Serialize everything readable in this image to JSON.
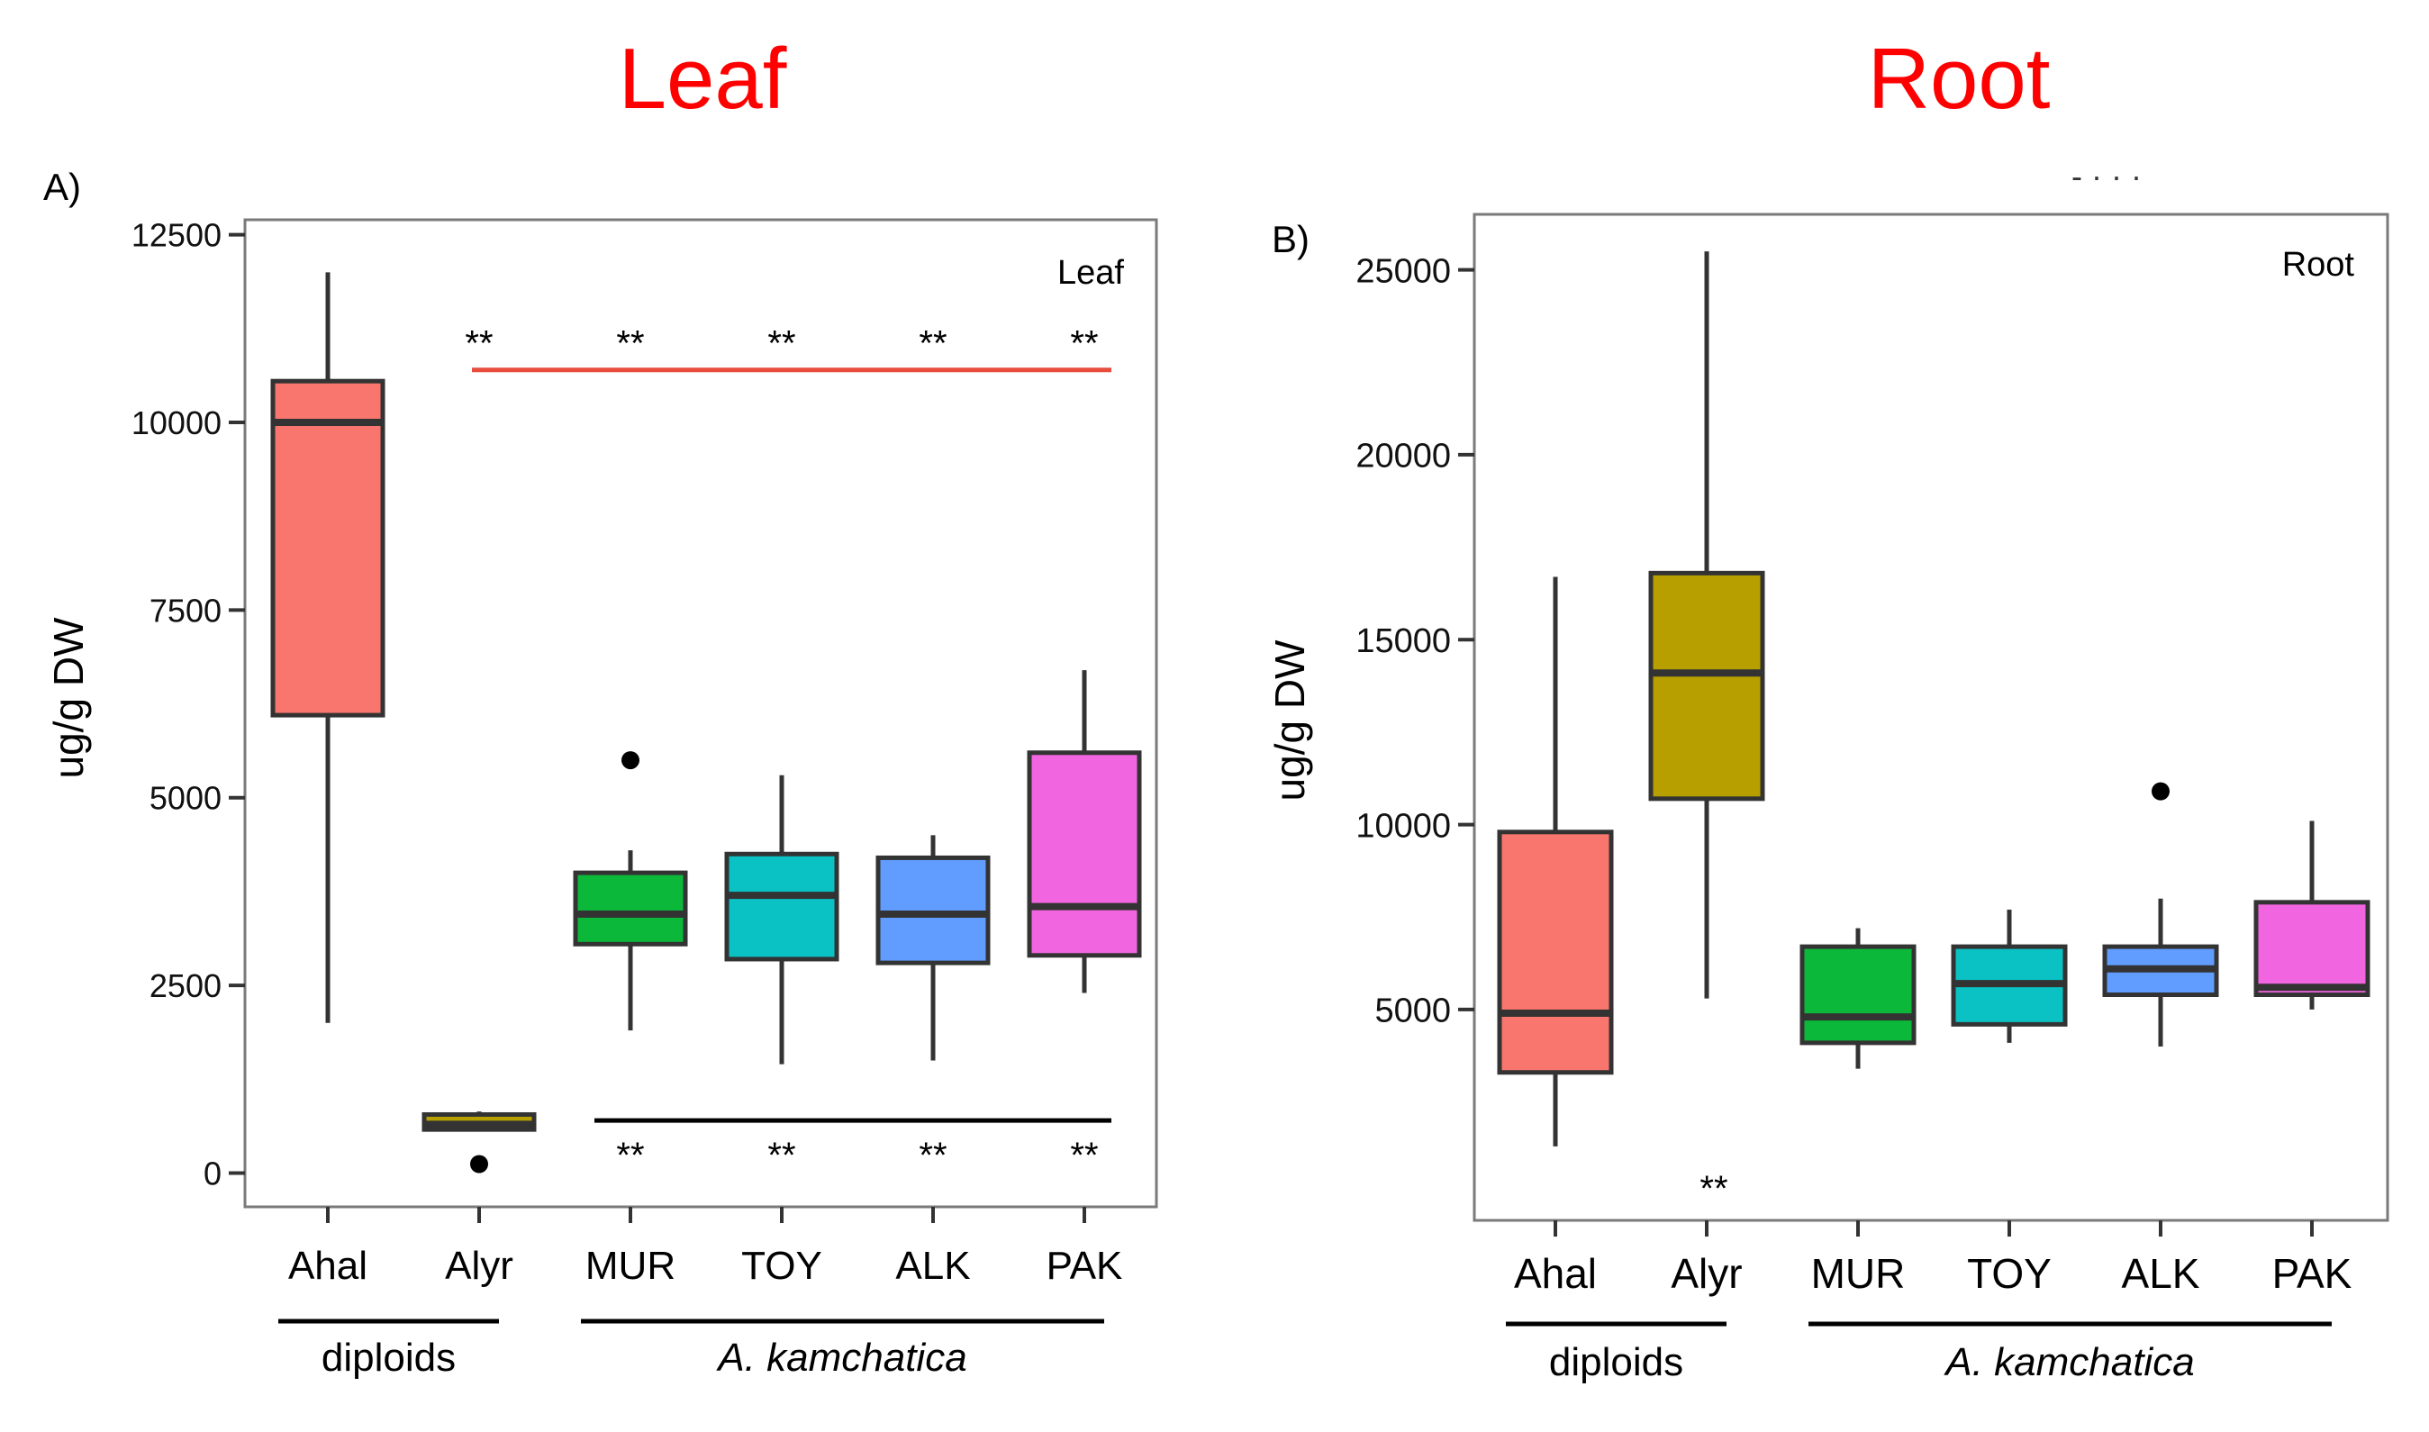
{
  "colors": {
    "Ahal": "#f8766d",
    "Alyr": "#b79f00",
    "MUR": "#0cb83a",
    "TOY": "#0ac1c4",
    "ALK": "#619cff",
    "PAK": "#f265e0",
    "heading": "#ff0000",
    "leaf_bar": "#e74c3c",
    "axis": "#333333"
  },
  "panel_titles": [
    "Leaf",
    "Root"
  ],
  "stray_text": "- · · ·",
  "chart_data": [
    {
      "type": "boxplot",
      "panel_label": "A)",
      "inset_label": "Leaf",
      "ylabel": "ug/g DW",
      "ylim": [
        -450,
        12700
      ],
      "y_ticks": [
        0,
        2500,
        5000,
        7500,
        10000,
        12500
      ],
      "y_tick_labels": [
        "0",
        "2500",
        "5000",
        "7500",
        "10000",
        "12500"
      ],
      "categories": [
        "Ahal",
        "Alyr",
        "MUR",
        "TOY",
        "ALK",
        "PAK"
      ],
      "boxes": [
        {
          "name": "Ahal",
          "whisker_low": 2000,
          "q1": 6100,
          "median": 10000,
          "q3": 10550,
          "whisker_high": 12000,
          "outliers": []
        },
        {
          "name": "Alyr",
          "whisker_low": 580,
          "q1": 580,
          "median": 650,
          "q3": 780,
          "whisker_high": 820,
          "outliers": [
            120
          ]
        },
        {
          "name": "MUR",
          "whisker_low": 1900,
          "q1": 3050,
          "median": 3450,
          "q3": 4000,
          "whisker_high": 4300,
          "outliers": [
            5500
          ]
        },
        {
          "name": "TOY",
          "whisker_low": 1450,
          "q1": 2850,
          "median": 3700,
          "q3": 4250,
          "whisker_high": 5300,
          "outliers": []
        },
        {
          "name": "ALK",
          "whisker_low": 1500,
          "q1": 2800,
          "median": 3450,
          "q3": 4200,
          "whisker_high": 4500,
          "outliers": []
        },
        {
          "name": "PAK",
          "whisker_low": 2400,
          "q1": 2900,
          "median": 3550,
          "q3": 5600,
          "whisker_high": 6700,
          "outliers": []
        }
      ],
      "significance_top": {
        "text": "**",
        "categories": [
          "Alyr",
          "MUR",
          "TOY",
          "ALK",
          "PAK"
        ],
        "line_value": 10700
      },
      "significance_bottom": {
        "text": "**",
        "categories": [
          "MUR",
          "TOY",
          "ALK",
          "PAK"
        ],
        "line_value": 700
      },
      "groups": [
        {
          "label": "diploids",
          "from": "Ahal",
          "to": "Alyr",
          "italic": false
        },
        {
          "label": "A. kamchatica",
          "from": "MUR",
          "to": "PAK",
          "italic": true
        }
      ]
    },
    {
      "type": "boxplot",
      "panel_label": "B)",
      "inset_label": "Root",
      "ylabel": "ug/g DW",
      "ylim": [
        -700,
        26500
      ],
      "y_ticks": [
        5000,
        10000,
        15000,
        20000,
        25000
      ],
      "y_tick_labels": [
        "5000",
        "10000",
        "15000",
        "20000",
        "25000"
      ],
      "categories": [
        "Ahal",
        "Alyr",
        "MUR",
        "TOY",
        "ALK",
        "PAK"
      ],
      "boxes": [
        {
          "name": "Ahal",
          "whisker_low": 1300,
          "q1": 3300,
          "median": 4900,
          "q3": 9800,
          "whisker_high": 16700,
          "outliers": []
        },
        {
          "name": "Alyr",
          "whisker_low": 5300,
          "q1": 10700,
          "median": 14100,
          "q3": 16800,
          "whisker_high": 25500,
          "outliers": []
        },
        {
          "name": "MUR",
          "whisker_low": 3400,
          "q1": 4100,
          "median": 4800,
          "q3": 6700,
          "whisker_high": 7200,
          "outliers": []
        },
        {
          "name": "TOY",
          "whisker_low": 4100,
          "q1": 4600,
          "median": 5700,
          "q3": 6700,
          "whisker_high": 7700,
          "outliers": []
        },
        {
          "name": "ALK",
          "whisker_low": 4000,
          "q1": 5400,
          "median": 6100,
          "q3": 6700,
          "whisker_high": 8000,
          "outliers": [
            10900
          ]
        },
        {
          "name": "PAK",
          "whisker_low": 5000,
          "q1": 5400,
          "median": 5600,
          "q3": 7900,
          "whisker_high": 10100,
          "outliers": []
        }
      ],
      "significance_top": null,
      "significance_bottom": {
        "text": "**",
        "categories": [
          "Alyr"
        ],
        "line_value": null
      },
      "groups": [
        {
          "label": "diploids",
          "from": "Ahal",
          "to": "Alyr",
          "italic": false
        },
        {
          "label": "A. kamchatica",
          "from": "MUR",
          "to": "PAK",
          "italic": true
        }
      ]
    }
  ]
}
